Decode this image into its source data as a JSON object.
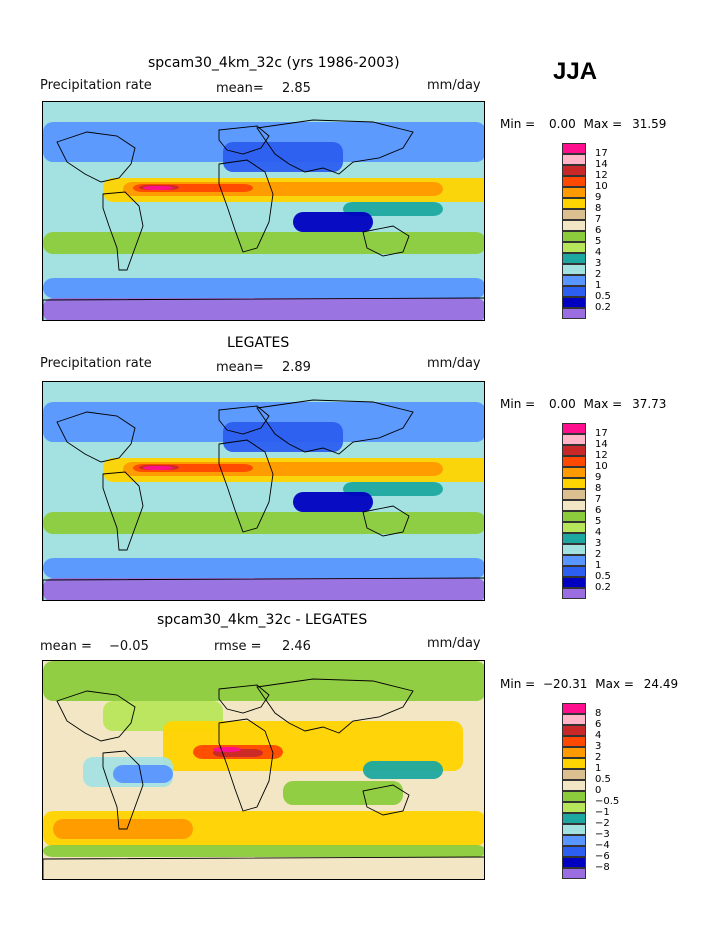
{
  "season": "JJA",
  "panels": [
    {
      "id": "model",
      "title": "spcam30_4km_32c (yrs 1986-2003)",
      "left_label": "Precipitation rate",
      "mean_label": "mean=",
      "mean_value": "2.85",
      "units": "mm/day",
      "min_label": "Min =",
      "min_value": "0.00",
      "max_label": "Max =",
      "max_value": "31.59",
      "colorbar": {
        "levels": [
          "17",
          "14",
          "12",
          "10",
          "9",
          "8",
          "7",
          "6",
          "5",
          "4",
          "3",
          "2",
          "1",
          "0.5",
          "0.2"
        ],
        "colors": [
          "#ff0f8e",
          "#ffb6c8",
          "#c82828",
          "#ff4800",
          "#ff9a00",
          "#ffd400",
          "#dcbf90",
          "#f2e6c4",
          "#8ccc3c",
          "#b8e65a",
          "#1ca8a0",
          "#a4e2e2",
          "#5a96ff",
          "#2c5ef0",
          "#0000c0",
          "#9a6ee0"
        ]
      }
    },
    {
      "id": "obs",
      "title": "LEGATES",
      "left_label": "Precipitation rate",
      "mean_label": "mean=",
      "mean_value": "2.89",
      "units": "mm/day",
      "min_label": "Min =",
      "min_value": "0.00",
      "max_label": "Max =",
      "max_value": "37.73",
      "colorbar": {
        "levels": [
          "17",
          "14",
          "12",
          "10",
          "9",
          "8",
          "7",
          "6",
          "5",
          "4",
          "3",
          "2",
          "1",
          "0.5",
          "0.2"
        ],
        "colors": [
          "#ff0f8e",
          "#ffb6c8",
          "#c82828",
          "#ff4800",
          "#ff9a00",
          "#ffd400",
          "#dcbf90",
          "#f2e6c4",
          "#8ccc3c",
          "#b8e65a",
          "#1ca8a0",
          "#a4e2e2",
          "#5a96ff",
          "#2c5ef0",
          "#0000c0",
          "#9a6ee0"
        ]
      }
    },
    {
      "id": "diff",
      "title": "spcam30_4km_32c - LEGATES",
      "left_label": "mean =",
      "mean_label": "",
      "mean_value": "−0.05",
      "rmse_label": "rmse =",
      "rmse_value": "2.46",
      "units": "mm/day",
      "min_label": "Min =",
      "min_value": "−20.31",
      "max_label": "Max =",
      "max_value": "24.49",
      "colorbar": {
        "levels": [
          "8",
          "6",
          "4",
          "3",
          "2",
          "1",
          "0.5",
          "0",
          "−0.5",
          "−1",
          "−2",
          "−3",
          "−4",
          "−6",
          "−8"
        ],
        "colors": [
          "#ff0f8e",
          "#ffb6c8",
          "#c82828",
          "#ff4800",
          "#ff9a00",
          "#ffd400",
          "#dcbf90",
          "#f2e6c4",
          "#8ccc3c",
          "#b8e65a",
          "#1ca8a0",
          "#a4e2e2",
          "#5a96ff",
          "#2c5ef0",
          "#0000c0",
          "#9a6ee0"
        ]
      }
    }
  ]
}
